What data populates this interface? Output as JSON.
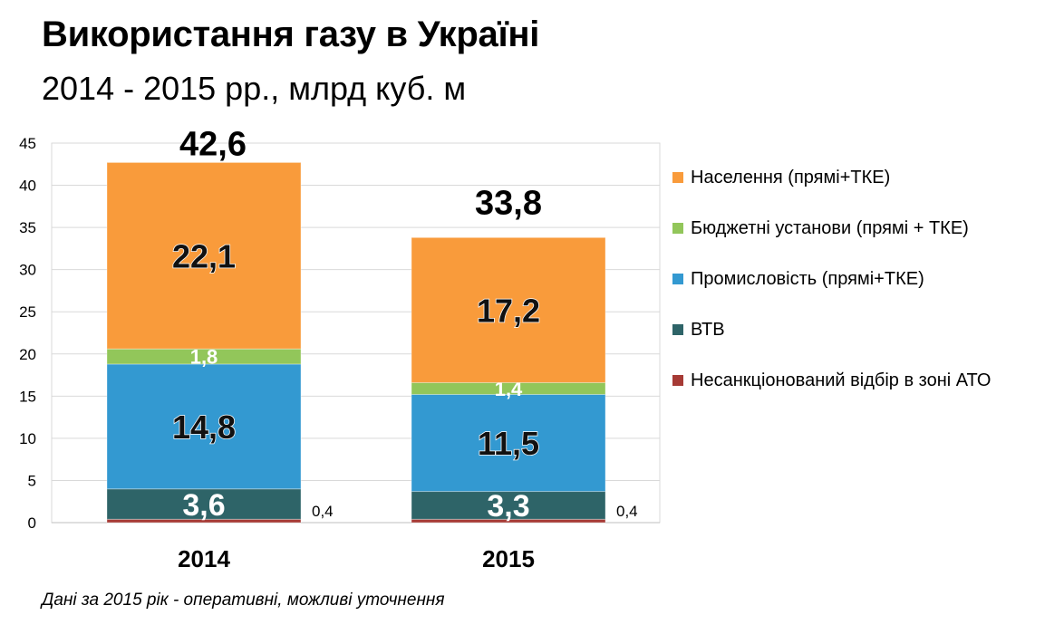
{
  "title": "Використання газу в Україні",
  "subtitle": "2014 - 2015 рр., млрд куб. м",
  "footnote": "Дані за 2015 рік - оперативні, можливі уточнення",
  "chart_data": {
    "type": "bar",
    "stacked": true,
    "categories": [
      "2014",
      "2015"
    ],
    "ylim": [
      0,
      45
    ],
    "yticks": [
      0,
      5,
      10,
      15,
      20,
      25,
      30,
      35,
      40,
      45
    ],
    "grid": true,
    "legend_position": "right",
    "totals": [
      "42,6",
      "33,8"
    ],
    "series": [
      {
        "name": "Несанкціонований відбір в зоні АТО",
        "color": "#a63a35",
        "values": [
          0.4,
          0.4
        ],
        "labels": [
          "0,4",
          "0,4"
        ],
        "label_style": "outside"
      },
      {
        "name": "ВТВ",
        "color": "#2e6468",
        "values": [
          3.6,
          3.3
        ],
        "labels": [
          "3,6",
          "3,3"
        ],
        "label_style": "white"
      },
      {
        "name": "Промисловість (прямі+ТКЕ)",
        "color": "#3399d1",
        "values": [
          14.8,
          11.5
        ],
        "labels": [
          "14,8",
          "11,5"
        ],
        "label_style": "dark"
      },
      {
        "name": "Бюджетні установи (прямі + ТКЕ)",
        "color": "#92c65a",
        "values": [
          1.8,
          1.4
        ],
        "labels": [
          "1,8",
          "1,4"
        ],
        "label_style": "white"
      },
      {
        "name": "Населення (прямі+ТКЕ)",
        "color": "#f99b3b",
        "values": [
          22.1,
          17.2
        ],
        "labels": [
          "22,1",
          "17,2"
        ],
        "label_style": "dark"
      }
    ],
    "legend_order": [
      4,
      3,
      2,
      1,
      0
    ]
  }
}
